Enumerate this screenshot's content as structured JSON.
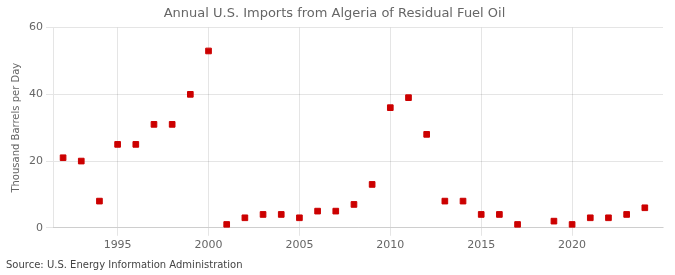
{
  "chart_data": {
    "type": "scatter",
    "title": "Annual U.S. Imports from Algeria of Residual Fuel Oil",
    "ylabel": "Thousand Barrels per Day",
    "source": "Source: U.S. Energy Information Administration",
    "x": [
      1992,
      1993,
      1994,
      1995,
      1996,
      1997,
      1998,
      1999,
      2000,
      2001,
      2002,
      2003,
      2004,
      2005,
      2006,
      2007,
      2008,
      2009,
      2010,
      2011,
      2012,
      2013,
      2014,
      2015,
      2016,
      2017,
      2019,
      2020,
      2021,
      2022,
      2023,
      2024
    ],
    "values": [
      21,
      20,
      8,
      25,
      25,
      31,
      31,
      40,
      53,
      1,
      3,
      4,
      4,
      3,
      5,
      5,
      7,
      13,
      36,
      39,
      28,
      8,
      8,
      4,
      4,
      1,
      2,
      1,
      3,
      3,
      4,
      6
    ],
    "color": "#cc0000",
    "marker": "square",
    "xlim": [
      1991.5,
      2025
    ],
    "xticks": [
      1995,
      2000,
      2005,
      2010,
      2015,
      2020
    ],
    "ylim": [
      0,
      60
    ],
    "yticks": [
      0,
      20,
      40,
      60
    ],
    "grid": true
  }
}
